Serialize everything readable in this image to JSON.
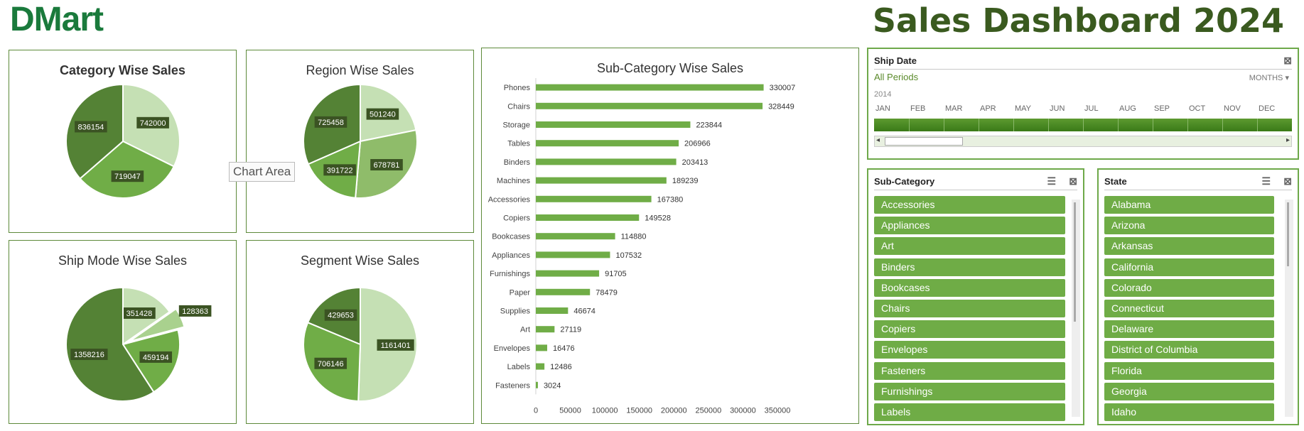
{
  "header": {
    "logo": "DMart",
    "title": "Sales Dashboard 2024"
  },
  "tooltip": "Chart Area",
  "colors": {
    "dark": "#548235",
    "mid": "#70ad47",
    "light": "#a9d18e",
    "pale": "#c5e0b4",
    "lighter": "#8fbc6a"
  },
  "pies": [
    {
      "id": "category",
      "title": "Category Wise Sales",
      "bold": true,
      "chart_data": {
        "type": "pie",
        "values": [
          742000,
          719047,
          836154
        ]
      }
    },
    {
      "id": "region",
      "title": "Region Wise Sales",
      "bold": false,
      "chart_data": {
        "type": "pie",
        "values": [
          501240,
          678781,
          391722,
          725458
        ]
      }
    },
    {
      "id": "shipmode",
      "title": "Ship Mode Wise Sales",
      "bold": false,
      "chart_data": {
        "type": "pie",
        "values": [
          351428,
          128363,
          459194,
          1358216
        ]
      }
    },
    {
      "id": "segment",
      "title": "Segment Wise Sales",
      "bold": false,
      "chart_data": {
        "type": "pie",
        "values": [
          1161401,
          706146,
          429653
        ]
      }
    }
  ],
  "chart_data": {
    "type": "bar",
    "title": "Sub-Category Wise Sales",
    "categories": [
      "Phones",
      "Chairs",
      "Storage",
      "Tables",
      "Binders",
      "Machines",
      "Accessories",
      "Copiers",
      "Bookcases",
      "Appliances",
      "Furnishings",
      "Paper",
      "Supplies",
      "Art",
      "Envelopes",
      "Labels",
      "Fasteners"
    ],
    "values": [
      330007,
      328449,
      223844,
      206966,
      203413,
      189239,
      167380,
      149528,
      114880,
      107532,
      91705,
      78479,
      46674,
      27119,
      16476,
      12486,
      3024
    ],
    "xlim": [
      0,
      350000
    ],
    "xticks": [
      "0",
      "50000",
      "100000",
      "150000",
      "200000",
      "250000",
      "300000",
      "350000"
    ]
  },
  "timeline": {
    "title": "Ship Date",
    "selection": "All Periods",
    "level": "MONTHS",
    "year": "2014",
    "months": [
      "JAN",
      "FEB",
      "MAR",
      "APR",
      "MAY",
      "JUN",
      "JUL",
      "AUG",
      "SEP",
      "OCT",
      "NOV",
      "DEC"
    ]
  },
  "subcategory_slicer": {
    "title": "Sub-Category",
    "items": [
      "Accessories",
      "Appliances",
      "Art",
      "Binders",
      "Bookcases",
      "Chairs",
      "Copiers",
      "Envelopes",
      "Fasteners",
      "Furnishings",
      "Labels"
    ]
  },
  "state_slicer": {
    "title": "State",
    "items": [
      "Alabama",
      "Arizona",
      "Arkansas",
      "California",
      "Colorado",
      "Connecticut",
      "Delaware",
      "District of Columbia",
      "Florida",
      "Georgia",
      "Idaho"
    ]
  }
}
